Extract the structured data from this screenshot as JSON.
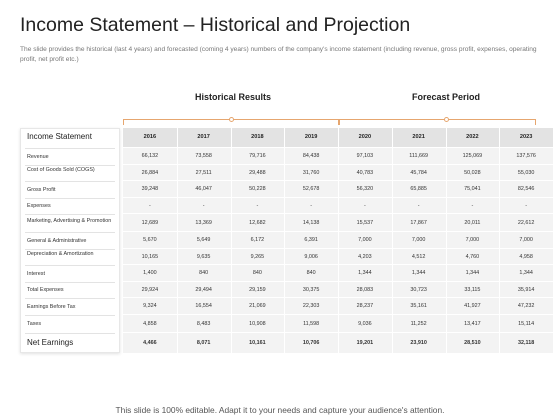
{
  "slide": {
    "title": "Income Statement – Historical and Projection",
    "description": "The slide provides the historical (last 4 years) and forecasted (coming 4 years) numbers of the company's income statement (including revenue, gross profit, expenses, operating profit, net profit etc.)"
  },
  "groups": {
    "historical": "Historical Results",
    "forecast": "Forecast Period"
  },
  "table": {
    "header_label": "Income Statement",
    "years": [
      "2016",
      "2017",
      "2018",
      "2019",
      "2020",
      "2021",
      "2022",
      "2023"
    ],
    "rows": [
      {
        "label": "Revenue",
        "values": [
          "66,132",
          "73,558",
          "79,716",
          "84,438",
          "97,103",
          "111,669",
          "125,069",
          "137,576"
        ]
      },
      {
        "label": "Cost of Goods Sold (COGS)",
        "values": [
          "26,884",
          "27,511",
          "29,488",
          "31,760",
          "40,783",
          "45,784",
          "50,028",
          "55,030"
        ]
      },
      {
        "label": "Gross Profit",
        "values": [
          "39,248",
          "46,047",
          "50,228",
          "52,678",
          "56,320",
          "65,885",
          "75,041",
          "82,546"
        ]
      },
      {
        "label": "Expenses",
        "values": [
          "-",
          "-",
          "-",
          "-",
          "-",
          "-",
          "-",
          "-"
        ]
      },
      {
        "label": "Marketing,  Advertising & Promotion",
        "values": [
          "12,689",
          "13,369",
          "12,682",
          "14,138",
          "15,537",
          "17,867",
          "20,011",
          "22,612"
        ]
      },
      {
        "label": "General & Administrative",
        "values": [
          "5,670",
          "5,649",
          "6,172",
          "6,391",
          "7,000",
          "7,000",
          "7,000",
          "7,000"
        ]
      },
      {
        "label": "Depreciation & Amortization",
        "values": [
          "10,165",
          "9,635",
          "9,265",
          "9,006",
          "4,203",
          "4,512",
          "4,760",
          "4,958"
        ]
      },
      {
        "label": "Interest",
        "values": [
          "1,400",
          "840",
          "840",
          "840",
          "1,344",
          "1,344",
          "1,344",
          "1,344"
        ]
      },
      {
        "label": "Total Expenses",
        "values": [
          "29,924",
          "29,494",
          "29,159",
          "30,375",
          "28,083",
          "30,723",
          "33,115",
          "35,914"
        ]
      },
      {
        "label": "Earnings Before Tax",
        "values": [
          "9,324",
          "16,554",
          "21,069",
          "22,303",
          "28,237",
          "35,161",
          "41,927",
          "47,232"
        ]
      },
      {
        "label": "Taxes",
        "values": [
          "4,858",
          "8,483",
          "10,908",
          "11,598",
          "9,036",
          "11,252",
          "13,417",
          "15,114"
        ]
      },
      {
        "label": "Net Earnings",
        "values": [
          "4,466",
          "8,071",
          "10,161",
          "10,706",
          "19,201",
          "23,910",
          "28,510",
          "32,118"
        ]
      }
    ]
  },
  "footer": {
    "text": "This slide is 100% editable. Adapt it to your needs and capture your audience's attention."
  },
  "colors": {
    "accent": "#e6a66f",
    "header_band": "#e3e3e3",
    "body_band": "#f3f3f3"
  }
}
